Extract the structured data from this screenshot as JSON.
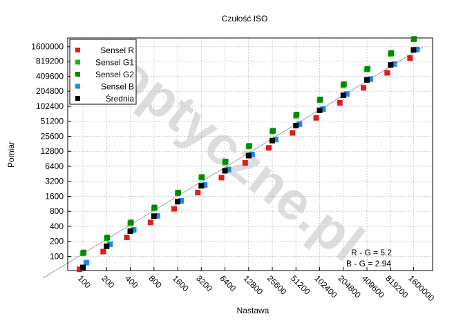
{
  "chart_data": {
    "type": "scatter",
    "title": "Czułość ISO",
    "xlabel": "Nastawa",
    "ylabel": "Pomiar",
    "scale": "log2",
    "grid": true,
    "legend_position": "top-left",
    "x_ticks": [
      "100",
      "200",
      "400",
      "800",
      "1600",
      "3200",
      "6400",
      "12800",
      "25600",
      "51200",
      "102400",
      "204800",
      "409600",
      "819200",
      "1600000"
    ],
    "y_ticks": [
      "100",
      "200",
      "400",
      "800",
      "1600",
      "3200",
      "6400",
      "12800",
      "25600",
      "51200",
      "102400",
      "204800",
      "409600",
      "819200",
      "1600000"
    ],
    "xlim": [
      64,
      2800000
    ],
    "ylim": [
      52,
      2400000
    ],
    "reference_line": "y = x",
    "x": [
      100,
      200,
      400,
      800,
      1600,
      3200,
      6400,
      12800,
      25600,
      51200,
      102400,
      204800,
      409600,
      819200,
      1600000
    ],
    "series": [
      {
        "name": "Sensel R",
        "color": "#e41a1c",
        "values": [
          55,
          125,
          240,
          480,
          900,
          1900,
          3800,
          7500,
          15000,
          30000,
          60000,
          120000,
          240000,
          480000,
          950000
        ]
      },
      {
        "name": "Sensel G1",
        "color": "#11bb11",
        "values": [
          115,
          230,
          460,
          920,
          1850,
          3800,
          7600,
          16000,
          32000,
          66000,
          135000,
          270000,
          560000,
          1150000,
          2250000
        ]
      },
      {
        "name": "Sensel G2",
        "color": "#008800",
        "values": [
          120,
          240,
          480,
          960,
          1900,
          3900,
          8000,
          16500,
          33000,
          70000,
          140000,
          285000,
          580000,
          1200000,
          2300000
        ]
      },
      {
        "name": "Sensel B",
        "color": "#1f88e5",
        "values": [
          75,
          175,
          340,
          650,
          1300,
          2700,
          5500,
          11000,
          22000,
          45000,
          90000,
          180000,
          360000,
          720000,
          1400000
        ]
      },
      {
        "name": "Średnia",
        "color": "#000000",
        "values": [
          60,
          160,
          320,
          640,
          1250,
          2600,
          5200,
          10500,
          21000,
          42000,
          85000,
          170000,
          345000,
          690000,
          1380000
        ]
      }
    ],
    "annotations": [
      "R - G = 5.2",
      "B - G = 2.94"
    ],
    "watermark": "optyczne.pl"
  }
}
